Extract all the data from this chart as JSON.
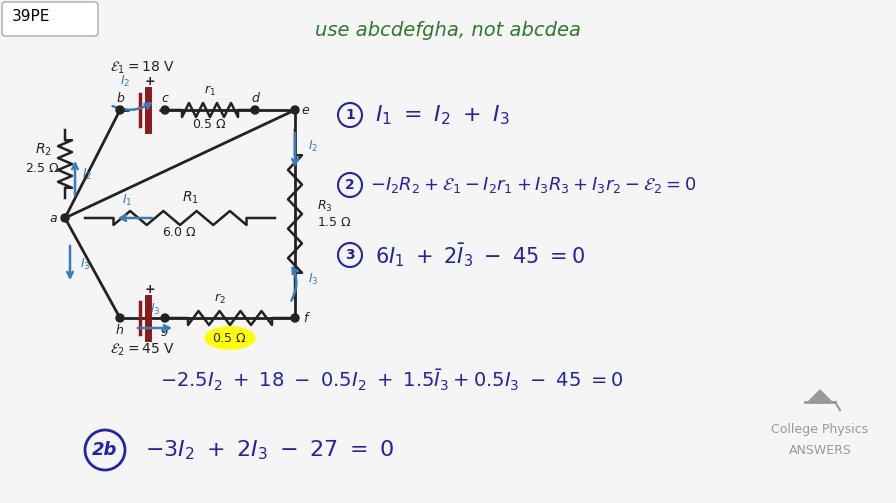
{
  "bg_color": "#f5f5f5",
  "title_box_text": "39PE",
  "header_text": "use abcdefgha, not abcdea",
  "header_color": "#2d7a2d",
  "circuit_color": "#8b1a1a",
  "wire_color": "#222222",
  "arrow_color": "#3a7abf",
  "node_color": "#222222",
  "eq1_color": "#2222aa",
  "eq_label_color": "#2222aa",
  "logo_color": "#999999",
  "equations": {
    "label1": "① ",
    "eq1": "$I_1 = I_2 + I_3$",
    "label2": "② ",
    "eq2": "$-I_2R_2 + \\mathcal{E}_1 - I_2r_1 + I_3R_3 + I_3r_2 - \\mathcal{E}_2 = 0$",
    "label3": "③ ",
    "eq3": "$6I_1 + 2\\bar{I}_3 - 45 = 0$",
    "eq_bottom": "$-2.5I_2 + 18 - 0.5I_2 + 1.5\\bar{I}_3 + 0.5I_3 - 45 = 0$",
    "label_2b": "2b",
    "eq_final": "$-3I_2 + 2I_3 - 27 = 0$"
  },
  "cpa_text": "College Physics\nANSWERS"
}
